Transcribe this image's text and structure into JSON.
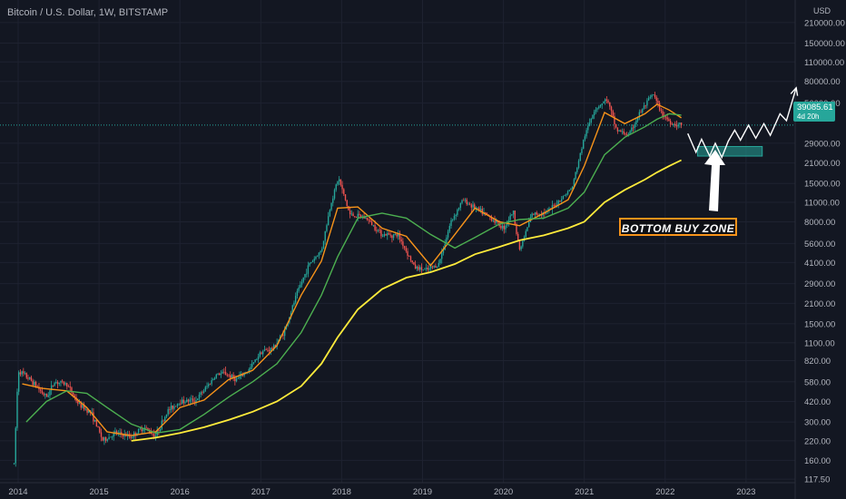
{
  "header": {
    "symbol_title": "Bitcoin / U.S. Dollar, 1W, BITSTAMP",
    "currency": "USD"
  },
  "price_badge": {
    "price": "39085.61",
    "countdown": "4d 20h",
    "color": "#26a69a"
  },
  "annotation": {
    "label": "BOTTOM BUY ZONE",
    "border_color": "#f7931a"
  },
  "colors": {
    "background": "#131722",
    "up_candle": "#26a69a",
    "down_candle": "#ef5350",
    "orange_ma": "#f7931a",
    "green_ma": "#4caf50",
    "yellow_ma": "#ffeb3b",
    "projection": "#ffffff"
  },
  "chart_data": {
    "type": "candlestick",
    "scale": "log",
    "ylim": [
      100,
      260000
    ],
    "y_ticks": [
      "210000.00",
      "150000.00",
      "110000.00",
      "80000.00",
      "56000.00",
      "29000.00",
      "21000.00",
      "15000.00",
      "11000.00",
      "8000.00",
      "5600.00",
      "4100.00",
      "2900.00",
      "2100.00",
      "1500.00",
      "1100.00",
      "820.00",
      "580.00",
      "420.00",
      "300.00",
      "220.00",
      "160.00",
      "117.50"
    ],
    "x_ticks": [
      "2014",
      "2015",
      "2016",
      "2017",
      "2018",
      "2019",
      "2020",
      "2021",
      "2022",
      "2023"
    ],
    "last_price": 39085.61,
    "price_path": [
      {
        "t": 2013.95,
        "v": 150
      },
      {
        "t": 2014.0,
        "v": 700
      },
      {
        "t": 2014.15,
        "v": 600
      },
      {
        "t": 2014.35,
        "v": 450
      },
      {
        "t": 2014.45,
        "v": 580
      },
      {
        "t": 2014.6,
        "v": 560
      },
      {
        "t": 2014.75,
        "v": 400
      },
      {
        "t": 2014.9,
        "v": 350
      },
      {
        "t": 2015.05,
        "v": 220
      },
      {
        "t": 2015.2,
        "v": 250
      },
      {
        "t": 2015.4,
        "v": 235
      },
      {
        "t": 2015.55,
        "v": 275
      },
      {
        "t": 2015.7,
        "v": 240
      },
      {
        "t": 2015.85,
        "v": 360
      },
      {
        "t": 2016.0,
        "v": 420
      },
      {
        "t": 2016.2,
        "v": 430
      },
      {
        "t": 2016.45,
        "v": 650
      },
      {
        "t": 2016.55,
        "v": 670
      },
      {
        "t": 2016.7,
        "v": 600
      },
      {
        "t": 2016.85,
        "v": 700
      },
      {
        "t": 2017.0,
        "v": 950
      },
      {
        "t": 2017.15,
        "v": 1000
      },
      {
        "t": 2017.3,
        "v": 1350
      },
      {
        "t": 2017.45,
        "v": 2500
      },
      {
        "t": 2017.6,
        "v": 4000
      },
      {
        "t": 2017.75,
        "v": 5000
      },
      {
        "t": 2017.87,
        "v": 11000
      },
      {
        "t": 2017.96,
        "v": 16500
      },
      {
        "t": 2018.1,
        "v": 9000
      },
      {
        "t": 2018.3,
        "v": 8500
      },
      {
        "t": 2018.5,
        "v": 6500
      },
      {
        "t": 2018.7,
        "v": 6400
      },
      {
        "t": 2018.9,
        "v": 3800
      },
      {
        "t": 2019.05,
        "v": 3600
      },
      {
        "t": 2019.2,
        "v": 4000
      },
      {
        "t": 2019.35,
        "v": 8000
      },
      {
        "t": 2019.5,
        "v": 11500
      },
      {
        "t": 2019.65,
        "v": 10000
      },
      {
        "t": 2019.85,
        "v": 8500
      },
      {
        "t": 2020.0,
        "v": 7200
      },
      {
        "t": 2020.12,
        "v": 9500
      },
      {
        "t": 2020.2,
        "v": 5000
      },
      {
        "t": 2020.35,
        "v": 9000
      },
      {
        "t": 2020.55,
        "v": 9400
      },
      {
        "t": 2020.7,
        "v": 11500
      },
      {
        "t": 2020.85,
        "v": 14000
      },
      {
        "t": 2021.0,
        "v": 32000
      },
      {
        "t": 2021.12,
        "v": 50000
      },
      {
        "t": 2021.28,
        "v": 60000
      },
      {
        "t": 2021.4,
        "v": 36000
      },
      {
        "t": 2021.55,
        "v": 33000
      },
      {
        "t": 2021.68,
        "v": 47000
      },
      {
        "t": 2021.85,
        "v": 65000
      },
      {
        "t": 2021.95,
        "v": 48000
      },
      {
        "t": 2022.08,
        "v": 40000
      },
      {
        "t": 2022.2,
        "v": 39085.61
      }
    ],
    "series": [
      {
        "name": "",
        "color": "#f7931a",
        "values": [
          {
            "t": 2014.05,
            "v": 560
          },
          {
            "t": 2014.3,
            "v": 520
          },
          {
            "t": 2014.6,
            "v": 500
          },
          {
            "t": 2014.85,
            "v": 380
          },
          {
            "t": 2015.1,
            "v": 255
          },
          {
            "t": 2015.4,
            "v": 240
          },
          {
            "t": 2015.7,
            "v": 255
          },
          {
            "t": 2016.0,
            "v": 380
          },
          {
            "t": 2016.3,
            "v": 430
          },
          {
            "t": 2016.6,
            "v": 600
          },
          {
            "t": 2016.9,
            "v": 700
          },
          {
            "t": 2017.2,
            "v": 1050
          },
          {
            "t": 2017.5,
            "v": 2400
          },
          {
            "t": 2017.75,
            "v": 4200
          },
          {
            "t": 2017.95,
            "v": 10000
          },
          {
            "t": 2018.2,
            "v": 10200
          },
          {
            "t": 2018.5,
            "v": 7200
          },
          {
            "t": 2018.8,
            "v": 6300
          },
          {
            "t": 2019.1,
            "v": 3900
          },
          {
            "t": 2019.4,
            "v": 6500
          },
          {
            "t": 2019.65,
            "v": 10000
          },
          {
            "t": 2019.95,
            "v": 8000
          },
          {
            "t": 2020.2,
            "v": 7500
          },
          {
            "t": 2020.5,
            "v": 9200
          },
          {
            "t": 2020.8,
            "v": 11500
          },
          {
            "t": 2021.0,
            "v": 20000
          },
          {
            "t": 2021.25,
            "v": 48000
          },
          {
            "t": 2021.5,
            "v": 40000
          },
          {
            "t": 2021.75,
            "v": 47000
          },
          {
            "t": 2021.9,
            "v": 55000
          },
          {
            "t": 2022.05,
            "v": 50000
          },
          {
            "t": 2022.2,
            "v": 44000
          }
        ]
      },
      {
        "name": "",
        "color": "#4caf50",
        "values": [
          {
            "t": 2014.1,
            "v": 300
          },
          {
            "t": 2014.35,
            "v": 420
          },
          {
            "t": 2014.6,
            "v": 500
          },
          {
            "t": 2014.85,
            "v": 480
          },
          {
            "t": 2015.1,
            "v": 380
          },
          {
            "t": 2015.4,
            "v": 290
          },
          {
            "t": 2015.7,
            "v": 250
          },
          {
            "t": 2016.0,
            "v": 265
          },
          {
            "t": 2016.3,
            "v": 340
          },
          {
            "t": 2016.6,
            "v": 450
          },
          {
            "t": 2016.9,
            "v": 580
          },
          {
            "t": 2017.2,
            "v": 780
          },
          {
            "t": 2017.5,
            "v": 1300
          },
          {
            "t": 2017.75,
            "v": 2400
          },
          {
            "t": 2017.95,
            "v": 4500
          },
          {
            "t": 2018.2,
            "v": 8500
          },
          {
            "t": 2018.5,
            "v": 9200
          },
          {
            "t": 2018.8,
            "v": 8500
          },
          {
            "t": 2019.1,
            "v": 6500
          },
          {
            "t": 2019.4,
            "v": 5200
          },
          {
            "t": 2019.65,
            "v": 6200
          },
          {
            "t": 2019.95,
            "v": 7700
          },
          {
            "t": 2020.2,
            "v": 8300
          },
          {
            "t": 2020.5,
            "v": 8500
          },
          {
            "t": 2020.8,
            "v": 10000
          },
          {
            "t": 2021.0,
            "v": 13000
          },
          {
            "t": 2021.25,
            "v": 24000
          },
          {
            "t": 2021.5,
            "v": 32000
          },
          {
            "t": 2021.75,
            "v": 38000
          },
          {
            "t": 2021.9,
            "v": 43000
          },
          {
            "t": 2022.05,
            "v": 47000
          },
          {
            "t": 2022.2,
            "v": 46000
          }
        ]
      },
      {
        "name": "",
        "color": "#ffeb3b",
        "values": [
          {
            "t": 2015.4,
            "v": 220
          },
          {
            "t": 2015.7,
            "v": 232
          },
          {
            "t": 2016.0,
            "v": 250
          },
          {
            "t": 2016.3,
            "v": 275
          },
          {
            "t": 2016.6,
            "v": 310
          },
          {
            "t": 2016.9,
            "v": 355
          },
          {
            "t": 2017.2,
            "v": 420
          },
          {
            "t": 2017.5,
            "v": 540
          },
          {
            "t": 2017.75,
            "v": 780
          },
          {
            "t": 2017.95,
            "v": 1200
          },
          {
            "t": 2018.2,
            "v": 1900
          },
          {
            "t": 2018.5,
            "v": 2650
          },
          {
            "t": 2018.8,
            "v": 3200
          },
          {
            "t": 2019.1,
            "v": 3500
          },
          {
            "t": 2019.4,
            "v": 4000
          },
          {
            "t": 2019.65,
            "v": 4700
          },
          {
            "t": 2019.95,
            "v": 5300
          },
          {
            "t": 2020.2,
            "v": 5900
          },
          {
            "t": 2020.5,
            "v": 6400
          },
          {
            "t": 2020.8,
            "v": 7200
          },
          {
            "t": 2021.0,
            "v": 8000
          },
          {
            "t": 2021.25,
            "v": 11000
          },
          {
            "t": 2021.5,
            "v": 13500
          },
          {
            "t": 2021.75,
            "v": 16000
          },
          {
            "t": 2021.9,
            "v": 18000
          },
          {
            "t": 2022.05,
            "v": 20000
          },
          {
            "t": 2022.2,
            "v": 22000
          }
        ]
      }
    ],
    "projection": [
      {
        "t": 2022.28,
        "v": 34000
      },
      {
        "t": 2022.38,
        "v": 25000
      },
      {
        "t": 2022.45,
        "v": 31000
      },
      {
        "t": 2022.55,
        "v": 23500
      },
      {
        "t": 2022.62,
        "v": 29000
      },
      {
        "t": 2022.7,
        "v": 23000
      },
      {
        "t": 2022.78,
        "v": 30000
      },
      {
        "t": 2022.86,
        "v": 36000
      },
      {
        "t": 2022.93,
        "v": 30500
      },
      {
        "t": 2023.03,
        "v": 39000
      },
      {
        "t": 2023.12,
        "v": 31500
      },
      {
        "t": 2023.22,
        "v": 40000
      },
      {
        "t": 2023.3,
        "v": 33000
      },
      {
        "t": 2023.42,
        "v": 47000
      },
      {
        "t": 2023.5,
        "v": 42000
      },
      {
        "t": 2023.62,
        "v": 72000
      }
    ],
    "buy_zone": {
      "t0": 2022.4,
      "t1": 2023.2,
      "v_low": 23500,
      "v_high": 27500
    }
  }
}
